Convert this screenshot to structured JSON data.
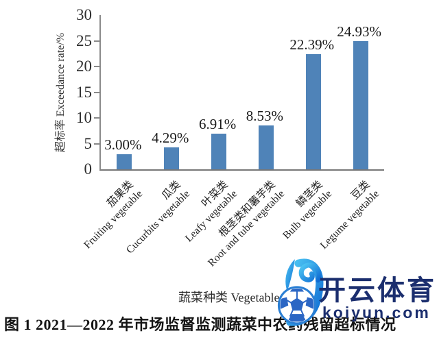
{
  "figure": {
    "caption": "图 1  2021—2022 年市场监督监测蔬菜中农药残留超标情况"
  },
  "chart_data": {
    "type": "bar",
    "title": "",
    "xlabel": "蔬菜种类 Vegetable type",
    "ylabel": "超标率 Exceedance rate/%",
    "ylim": [
      0,
      30
    ],
    "yticks": [
      0,
      5,
      10,
      15,
      20,
      25,
      30
    ],
    "grid": false,
    "legend": "none",
    "bar_color": "#4f83b8",
    "axis_color": "#8a8a8a",
    "categories": [
      {
        "zh": "茄果类",
        "en": "Fruiting vegetable"
      },
      {
        "zh": "瓜类",
        "en": "Cucurbits vegetable"
      },
      {
        "zh": "叶菜类",
        "en": "Leafy vegetable"
      },
      {
        "zh": "根茎类和薯芋类",
        "en": "Root and tube vegetable"
      },
      {
        "zh": "鳞茎类",
        "en": "Bulb vegetable"
      },
      {
        "zh": "豆类",
        "en": "Legume vegetable"
      }
    ],
    "values": [
      3.0,
      4.29,
      6.91,
      8.53,
      22.39,
      24.93
    ],
    "value_labels": [
      "3.00%",
      "4.29%",
      "6.91%",
      "8.53%",
      "22.39%",
      "24.93%"
    ]
  },
  "watermark": {
    "brand": "开云体育",
    "domain": "koiyun.com",
    "text_color": "#1b2e6e",
    "logo_icon": "kaiyun-k-soccer-ball-logo",
    "logo_gradient": [
      "#4fc8f4",
      "#0e6bd3"
    ]
  }
}
